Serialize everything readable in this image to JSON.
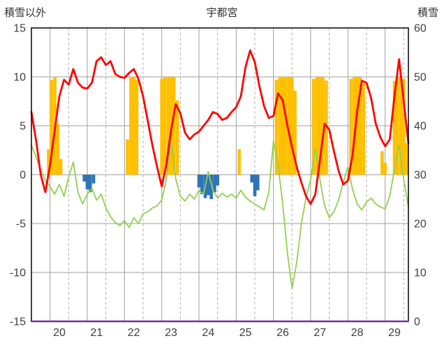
{
  "chart_data": {
    "type": "composite",
    "title": "宇都宮",
    "x_axis": {
      "min": 19.5,
      "max": 29.625,
      "labels": [
        "20",
        "21",
        "22",
        "23",
        "24",
        "25",
        "26",
        "27",
        "28",
        "29"
      ]
    },
    "left_axis": {
      "title": "積雪以外",
      "min": -15,
      "max": 15,
      "ticks": [
        15,
        10,
        5,
        0,
        -5,
        -10,
        -15
      ]
    },
    "right_axis": {
      "title": "積雪",
      "min": 0,
      "max": 60,
      "ticks": [
        60,
        50,
        40,
        30,
        20,
        10,
        0
      ]
    },
    "grid_color": "#9e9e9e",
    "dashed_grid_color": "#b3b3b3",
    "frame_color": "#000000",
    "tick_color": "#3f3f3f",
    "series": [
      {
        "name": "sunshine-bars",
        "type": "bar",
        "axis": "left",
        "color": "#ffc000",
        "points": [
          [
            19.96,
            2.6
          ],
          [
            20.04,
            9.7
          ],
          [
            20.13,
            10
          ],
          [
            20.21,
            5.2
          ],
          [
            20.29,
            1.6
          ],
          [
            22.08,
            3.6
          ],
          [
            22.17,
            10
          ],
          [
            22.25,
            10
          ],
          [
            22.33,
            9.7
          ],
          [
            23.0,
            9.8
          ],
          [
            23.08,
            10
          ],
          [
            23.17,
            10
          ],
          [
            23.25,
            10
          ],
          [
            23.33,
            10
          ],
          [
            23.42,
            7.6
          ],
          [
            25.08,
            2.6
          ],
          [
            26.08,
            9.7
          ],
          [
            26.17,
            10
          ],
          [
            26.25,
            10
          ],
          [
            26.33,
            10
          ],
          [
            26.42,
            10
          ],
          [
            26.5,
            10
          ],
          [
            26.58,
            8.6
          ],
          [
            27.08,
            9.8
          ],
          [
            27.17,
            10
          ],
          [
            27.25,
            10
          ],
          [
            27.33,
            10
          ],
          [
            27.42,
            9.6
          ],
          [
            28.08,
            9.8
          ],
          [
            28.17,
            10
          ],
          [
            28.25,
            10
          ],
          [
            28.33,
            10
          ],
          [
            28.42,
            9.3
          ],
          [
            28.92,
            2.4
          ],
          [
            29.0,
            1.2
          ],
          [
            29.25,
            9.6
          ],
          [
            29.33,
            10
          ],
          [
            29.42,
            10
          ],
          [
            29.5,
            9.8
          ],
          [
            29.58,
            3.2
          ]
        ]
      },
      {
        "name": "precipitation-bars",
        "type": "bar",
        "axis": "left",
        "color": "#2e75b6",
        "points": [
          [
            20.92,
            -0.7
          ],
          [
            21.0,
            -1.5
          ],
          [
            21.08,
            -1.8
          ],
          [
            21.17,
            -0.9
          ],
          [
            24.0,
            -1.3
          ],
          [
            24.08,
            -2.0
          ],
          [
            24.17,
            -2.4
          ],
          [
            24.25,
            -2.1
          ],
          [
            24.33,
            -2.5
          ],
          [
            24.42,
            -1.8
          ],
          [
            24.5,
            -1.1
          ],
          [
            25.42,
            -0.8
          ],
          [
            25.5,
            -2.2
          ],
          [
            25.58,
            -1.6
          ]
        ]
      },
      {
        "name": "green-line",
        "type": "line",
        "axis": "left",
        "color": "#92d050",
        "width": 1.8,
        "x0": 19.5,
        "dx": 0.125,
        "y": [
          3.0,
          1.8,
          0.5,
          -0.6,
          -1.2,
          -2.0,
          -1.0,
          -2.2,
          -0.3,
          1.3,
          -1.8,
          -3.0,
          -2.0,
          -1.4,
          -2.6,
          -2.0,
          -3.4,
          -4.3,
          -4.9,
          -5.2,
          -4.7,
          -5.4,
          -4.4,
          -5.0,
          -4.0,
          -3.8,
          -3.4,
          -3.2,
          -2.6,
          -0.5,
          3.5,
          -0.4,
          -2.2,
          -2.7,
          -2.0,
          -2.5,
          -1.6,
          -2.0,
          0.3,
          -1.6,
          -2.4,
          -1.9,
          -2.3,
          -2.0,
          -2.4,
          -1.6,
          -2.3,
          -2.7,
          -3.0,
          -3.3,
          -3.6,
          -1.8,
          3.4,
          1.0,
          -3.0,
          -8.0,
          -11.6,
          -9.0,
          -5.0,
          -2.4,
          -0.5,
          2.7,
          -0.5,
          -3.2,
          -4.4,
          -3.8,
          -2.6,
          -0.8,
          0.8,
          -1.5,
          -3.0,
          -3.6,
          -2.8,
          -2.4,
          -3.0,
          -3.3,
          -3.5,
          -2.2,
          0.5,
          3.0,
          -0.5,
          -3.3
        ]
      },
      {
        "name": "temperature-line",
        "type": "line",
        "axis": "left",
        "color": "#ff0000",
        "width": 2.8,
        "x0": 19.5,
        "dx": 0.125,
        "y": [
          6.4,
          3.5,
          0.0,
          -1.8,
          1.0,
          4.5,
          8.0,
          9.7,
          9.2,
          10.8,
          9.4,
          8.9,
          8.8,
          9.4,
          11.6,
          12.0,
          11.2,
          11.6,
          10.3,
          10.0,
          9.9,
          10.4,
          10.8,
          9.8,
          8.0,
          5.5,
          3.0,
          0.8,
          -1.2,
          1.0,
          4.5,
          7.2,
          6.3,
          4.3,
          3.6,
          4.1,
          4.4,
          5.0,
          5.6,
          6.4,
          6.2,
          5.6,
          5.8,
          6.4,
          6.9,
          8.0,
          11.0,
          12.7,
          11.5,
          9.0,
          7.0,
          5.8,
          6.0,
          8.3,
          7.6,
          5.0,
          2.8,
          0.8,
          -0.8,
          -2.2,
          -3.0,
          -2.0,
          1.5,
          5.2,
          4.6,
          2.4,
          0.4,
          -1.0,
          -0.6,
          2.0,
          6.5,
          9.6,
          9.4,
          7.8,
          5.2,
          3.8,
          2.9,
          3.6,
          8.0,
          11.8,
          7.5,
          3.2
        ]
      },
      {
        "name": "snow-depth-line",
        "type": "hline",
        "axis": "right",
        "color": "#7030a0",
        "width": 2.5,
        "value": 0
      }
    ]
  }
}
